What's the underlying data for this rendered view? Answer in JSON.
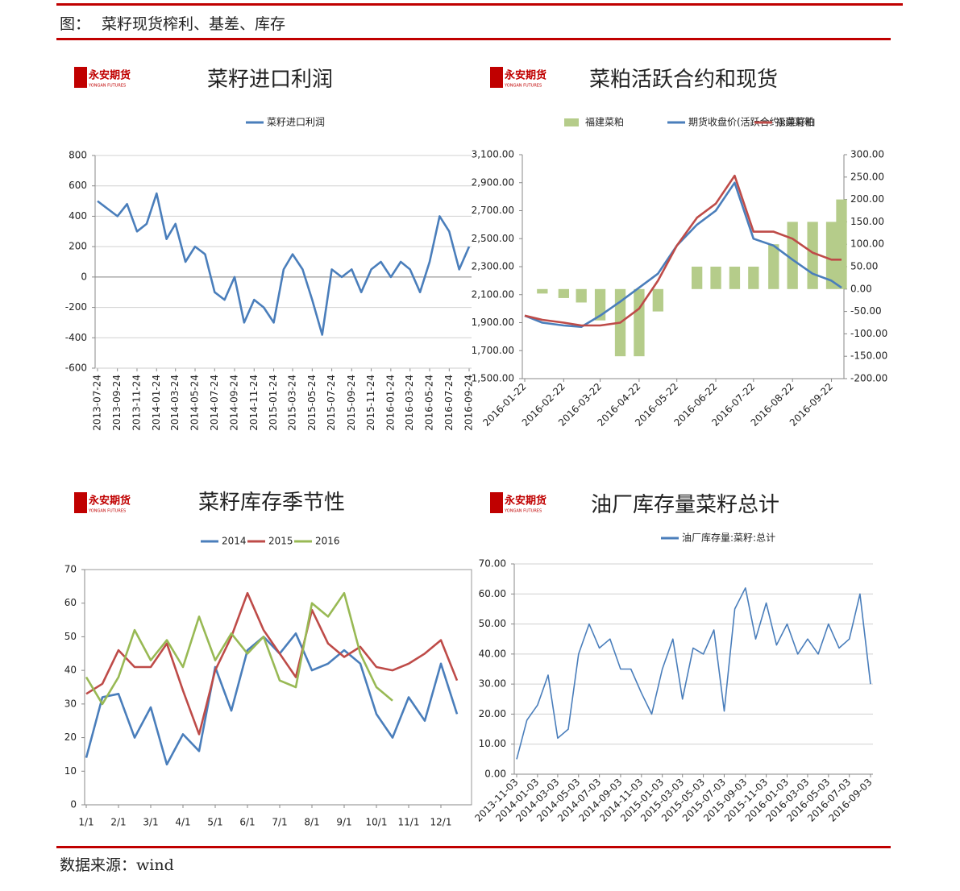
{
  "header": {
    "label": "图：",
    "title": "菜籽现货榨利、基差、库存"
  },
  "source": "数据来源：wind",
  "logo": {
    "name": "永安期货",
    "sub": "YONGAN FUTURES"
  },
  "chart_data": [
    {
      "type": "line",
      "title": "菜籽进口利润",
      "grid": true,
      "x": [
        "2013-07-24",
        "2013-08-24",
        "2013-09-24",
        "2013-10-24",
        "2013-11-24",
        "2013-12-24",
        "2014-01-24",
        "2014-02-24",
        "2014-03-24",
        "2014-04-24",
        "2014-05-24",
        "2014-06-24",
        "2014-07-24",
        "2014-08-24",
        "2014-09-24",
        "2014-10-24",
        "2014-11-24",
        "2014-12-24",
        "2015-01-24",
        "2015-02-24",
        "2015-03-24",
        "2015-04-24",
        "2015-05-24",
        "2015-06-24",
        "2015-07-24",
        "2015-08-24",
        "2015-09-24",
        "2015-10-24",
        "2015-11-24",
        "2015-12-24",
        "2016-01-24",
        "2016-02-24",
        "2016-03-24",
        "2016-04-24",
        "2016-05-24",
        "2016-06-24",
        "2016-07-24",
        "2016-08-24",
        "2016-09-24"
      ],
      "series": [
        {
          "name": "菜籽进口利润",
          "color": "#4a7ebb",
          "values": [
            500,
            450,
            400,
            480,
            300,
            350,
            550,
            250,
            350,
            100,
            200,
            150,
            -100,
            -150,
            0,
            -300,
            -150,
            -200,
            -300,
            50,
            150,
            50,
            -150,
            -380,
            50,
            0,
            50,
            -100,
            50,
            100,
            0,
            100,
            50,
            -100,
            100,
            400,
            300,
            50,
            200
          ]
        }
      ],
      "xticks": [
        "2013-07-24",
        "2013-09-24",
        "2013-11-24",
        "2014-01-24",
        "2014-03-24",
        "2014-05-24",
        "2014-07-24",
        "2014-09-24",
        "2014-11-24",
        "2015-01-24",
        "2015-03-24",
        "2015-05-24",
        "2015-07-24",
        "2015-09-24",
        "2015-11-24",
        "2016-01-24",
        "2016-03-24",
        "2016-05-24",
        "2016-07-24",
        "2016-09-24"
      ],
      "ylim": [
        -600,
        800
      ],
      "yticks": [
        -600,
        -400,
        -200,
        0,
        200,
        400,
        600,
        800
      ]
    },
    {
      "type": "combo",
      "title": "菜粕活跃合约和现货",
      "grid": false,
      "x": [
        "2016-01-22",
        "2016-02-05",
        "2016-02-22",
        "2016-03-07",
        "2016-03-22",
        "2016-04-07",
        "2016-04-22",
        "2016-05-07",
        "2016-05-22",
        "2016-06-07",
        "2016-06-22",
        "2016-07-07",
        "2016-07-22",
        "2016-08-07",
        "2016-08-22",
        "2016-09-07",
        "2016-09-22",
        "2016-09-30"
      ],
      "series": [
        {
          "name": "福建菜粕",
          "type": "bar",
          "axis": "y2",
          "color": "#b5cc8a",
          "values": [
            0,
            -10,
            -20,
            -30,
            -70,
            -150,
            -150,
            -50,
            0,
            50,
            50,
            50,
            50,
            100,
            150,
            150,
            150,
            200
          ]
        },
        {
          "name": "期货收盘价(活跃合约):菜籽粕",
          "color": "#4a7ebb",
          "values": [
            1950,
            1900,
            1880,
            1870,
            1950,
            2050,
            2150,
            2250,
            2450,
            2600,
            2700,
            2900,
            2500,
            2450,
            2350,
            2250,
            2200,
            2150
          ]
        },
        {
          "name": "福建菜粕",
          "color": "#be4b48",
          "values": [
            1950,
            1920,
            1900,
            1880,
            1880,
            1900,
            2000,
            2200,
            2450,
            2650,
            2750,
            2950,
            2550,
            2550,
            2500,
            2400,
            2350,
            2350
          ]
        }
      ],
      "xticks": [
        "2016-01-22",
        "2016-02-22",
        "2016-03-22",
        "2016-04-22",
        "2016-05-22",
        "2016-06-22",
        "2016-07-22",
        "2016-08-22",
        "2016-09-22"
      ],
      "ylim": [
        1500,
        3100
      ],
      "yticks": [
        {
          "value": 1500,
          "label": "1,500.00"
        },
        {
          "value": 1700,
          "label": "1,700.00"
        },
        {
          "value": 1900,
          "label": "1,900.00"
        },
        {
          "value": 2100,
          "label": "2,100.00"
        },
        {
          "value": 2300,
          "label": "2,300.00"
        },
        {
          "value": 2500,
          "label": "2,500.00"
        },
        {
          "value": 2700,
          "label": "2,700.00"
        },
        {
          "value": 2900,
          "label": "2,900.00"
        },
        {
          "value": 3100,
          "label": "3,100.00"
        }
      ],
      "y2lim": [
        -200,
        300
      ],
      "y2ticks": [
        {
          "value": -200,
          "label": "-200.00"
        },
        {
          "value": -150,
          "label": "-150.00"
        },
        {
          "value": -100,
          "label": "-100.00"
        },
        {
          "value": -50,
          "label": "-50.00"
        },
        {
          "value": 0,
          "label": "0.00"
        },
        {
          "value": 50,
          "label": "50.00"
        },
        {
          "value": 100,
          "label": "100.00"
        },
        {
          "value": 150,
          "label": "150.00"
        },
        {
          "value": 200,
          "label": "200.00"
        },
        {
          "value": 250,
          "label": "250.00"
        },
        {
          "value": 300,
          "label": "300.00"
        }
      ]
    },
    {
      "type": "line",
      "title": "菜籽库存季节性",
      "grid": false,
      "categories": [
        "1/1",
        null,
        "2/1",
        null,
        "3/1",
        null,
        "4/1",
        null,
        "5/1",
        null,
        "6/1",
        null,
        "7/1",
        null,
        "8/1",
        null,
        "9/1",
        null,
        "10/1",
        null,
        "11/1",
        null,
        "12/1",
        null
      ],
      "series": [
        {
          "name": "2014",
          "color": "#4a7ebb",
          "values": [
            14,
            32,
            33,
            20,
            29,
            12,
            21,
            16,
            41,
            28,
            46,
            50,
            45,
            51,
            40,
            42,
            46,
            42,
            27,
            20,
            32,
            25,
            42,
            27
          ]
        },
        {
          "name": "2015",
          "color": "#be4b48",
          "values": [
            33,
            36,
            46,
            41,
            41,
            48,
            34,
            21,
            40,
            50,
            63,
            52,
            45,
            38,
            58,
            48,
            44,
            47,
            41,
            40,
            42,
            45,
            49,
            37
          ]
        },
        {
          "name": "2016",
          "color": "#98b954",
          "values": [
            38,
            30,
            38,
            52,
            43,
            49,
            41,
            56,
            43,
            51,
            45,
            50,
            37,
            35,
            60,
            56,
            63,
            45,
            35,
            31,
            null,
            null,
            null,
            null
          ]
        }
      ],
      "ylim": [
        0,
        70
      ],
      "yticks": [
        0,
        10,
        20,
        30,
        40,
        50,
        60,
        70
      ]
    },
    {
      "type": "line",
      "title": "油厂库存量菜籽总计",
      "grid": true,
      "x": [
        "2013-11-03",
        "2013-12-03",
        "2014-01-03",
        "2014-02-03",
        "2014-03-03",
        "2014-04-03",
        "2014-05-03",
        "2014-06-03",
        "2014-07-03",
        "2014-08-03",
        "2014-09-03",
        "2014-10-03",
        "2014-11-03",
        "2014-12-03",
        "2015-01-03",
        "2015-02-03",
        "2015-03-03",
        "2015-04-03",
        "2015-05-03",
        "2015-06-03",
        "2015-07-03",
        "2015-08-03",
        "2015-09-03",
        "2015-10-03",
        "2015-11-03",
        "2015-12-03",
        "2016-01-03",
        "2016-02-03",
        "2016-03-03",
        "2016-04-03",
        "2016-05-03",
        "2016-06-03",
        "2016-07-03",
        "2016-08-03",
        "2016-09-03"
      ],
      "series": [
        {
          "name": "油厂库存量:菜籽:总计",
          "color": "#4a7ebb",
          "values": [
            5,
            18,
            23,
            33,
            12,
            15,
            40,
            50,
            42,
            45,
            35,
            35,
            27,
            20,
            35,
            45,
            25,
            42,
            40,
            48,
            21,
            55,
            62,
            45,
            57,
            43,
            50,
            40,
            45,
            40,
            50,
            42,
            45,
            60,
            30
          ]
        }
      ],
      "xticks": [
        "2013-11-03",
        "2014-01-03",
        "2014-03-03",
        "2014-05-03",
        "2014-07-03",
        "2014-09-03",
        "2014-11-03",
        "2015-01-03",
        "2015-03-03",
        "2015-05-03",
        "2015-07-03",
        "2015-09-03",
        "2015-11-03",
        "2016-01-03",
        "2016-03-03",
        "2016-05-03",
        "2016-07-03",
        "2016-09-03"
      ],
      "ylim": [
        0,
        70
      ],
      "yticks": [
        {
          "value": 0,
          "label": "0.00"
        },
        {
          "value": 10,
          "label": "10.00"
        },
        {
          "value": 20,
          "label": "20.00"
        },
        {
          "value": 30,
          "label": "30.00"
        },
        {
          "value": 40,
          "label": "40.00"
        },
        {
          "value": 50,
          "label": "50.00"
        },
        {
          "value": 60,
          "label": "60.00"
        },
        {
          "value": 70,
          "label": "70.00"
        }
      ]
    }
  ]
}
